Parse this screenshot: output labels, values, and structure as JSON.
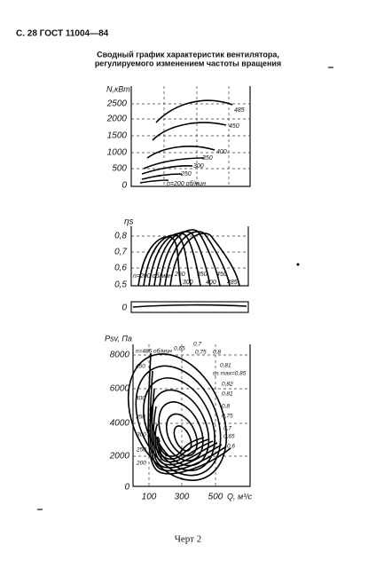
{
  "header": "С. 28 ГОСТ 11004—84",
  "title": [
    "Сводный график характеристик вентилятора,",
    "регулируемого изменением частоты вращения"
  ],
  "power_chart": {
    "y_label": "N,кВт",
    "y_ticks": [
      "2500",
      "2000",
      "1500",
      "1000",
      "500",
      "0"
    ],
    "curve_labels": [
      "485",
      "450",
      "400",
      "350",
      "300",
      "250",
      "n=200 об/мин"
    ]
  },
  "efficiency_chart": {
    "y_label": "ηs",
    "y_ticks": [
      "0,8",
      "0,7",
      "0,6",
      "0,5",
      "0"
    ],
    "curve_labels": [
      "n=200 об/мин",
      "250",
      "300",
      "350",
      "400",
      "450",
      "485"
    ]
  },
  "pressure_chart": {
    "y_label": "Psv, Па",
    "y_ticks": [
      "8000",
      "6000",
      "4000",
      "2000",
      "0"
    ],
    "x_ticks": [
      "100",
      "300",
      "500"
    ],
    "x_label": "Q, м³/с",
    "speed_labels": [
      "n=485 об/мин",
      "450",
      "400",
      "350",
      "300",
      "250",
      "200"
    ],
    "efficiency_labels": [
      "0,65",
      "0,7",
      "0,75",
      "0,8",
      "0,81",
      "ηs max=0,85",
      "0,82",
      "0,81",
      "0,8",
      "0,75",
      "0,7",
      "0,65",
      "0,6"
    ]
  },
  "caption": "Черт 2"
}
